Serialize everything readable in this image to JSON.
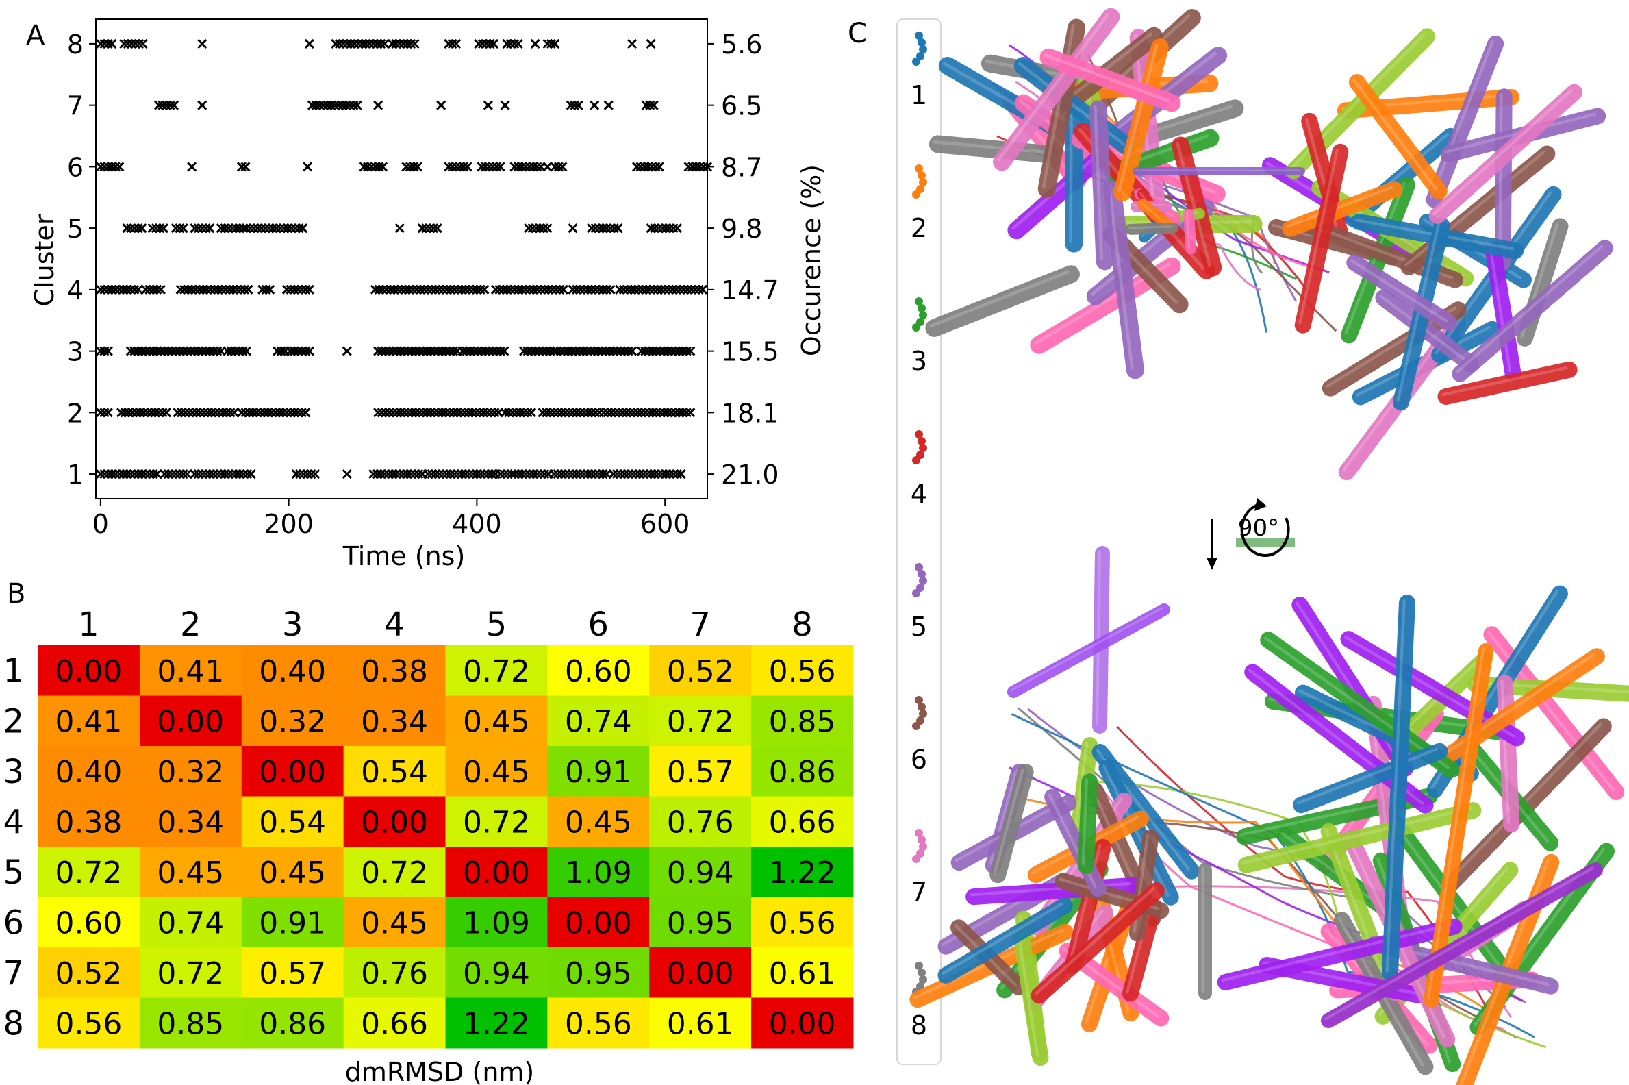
{
  "panels": {
    "a_label": "A",
    "b_label": "B",
    "c_label": "C"
  },
  "chart_data": [
    {
      "panel": "A",
      "type": "scatter",
      "marker": "x",
      "xlabel": "Time (ns)",
      "ylabel": "Cluster",
      "ylabel_right": "Occurence (%)",
      "xlim": [
        -5,
        645
      ],
      "ylim": [
        0.6,
        8.4
      ],
      "xticks": [
        "0",
        "200",
        "400",
        "600"
      ],
      "xtick_values": [
        0,
        200,
        400,
        600
      ],
      "yticks": [
        "1",
        "2",
        "3",
        "4",
        "5",
        "6",
        "7",
        "8"
      ],
      "right_ticks": [
        "21.0",
        "18.1",
        "15.5",
        "14.7",
        "9.8",
        "8.7",
        "6.5",
        "5.6"
      ],
      "series": [
        {
          "cluster": 1,
          "occurrence": 21.0,
          "time_ranges": [
            [
              0,
              62
            ],
            [
              68,
              95
            ],
            [
              100,
              160
            ],
            [
              208,
              228
            ],
            [
              262,
              262
            ],
            [
              290,
              345
            ],
            [
              348,
              420
            ],
            [
              425,
              440
            ],
            [
              440,
              478
            ],
            [
              482,
              540
            ],
            [
              545,
              620
            ]
          ]
        },
        {
          "cluster": 2,
          "occurrence": 18.1,
          "time_ranges": [
            [
              0,
              8
            ],
            [
              22,
              70
            ],
            [
              82,
              142
            ],
            [
              150,
              218
            ],
            [
              295,
              425
            ],
            [
              430,
              460
            ],
            [
              470,
              530
            ],
            [
              535,
              628
            ]
          ]
        },
        {
          "cluster": 3,
          "occurrence": 15.5,
          "time_ranges": [
            [
              0,
              8
            ],
            [
              32,
              72
            ],
            [
              60,
              128
            ],
            [
              135,
              158
            ],
            [
              188,
              198
            ],
            [
              202,
              225
            ],
            [
              262,
              262
            ],
            [
              295,
              380
            ],
            [
              385,
              432
            ],
            [
              450,
              482
            ],
            [
              485,
              565
            ],
            [
              575,
              628
            ]
          ]
        },
        {
          "cluster": 4,
          "occurrence": 14.7,
          "time_ranges": [
            [
              0,
              40
            ],
            [
              48,
              65
            ],
            [
              85,
              160
            ],
            [
              172,
              180
            ],
            [
              198,
              225
            ],
            [
              292,
              410
            ],
            [
              420,
              495
            ],
            [
              502,
              545
            ],
            [
              552,
              640
            ]
          ]
        },
        {
          "cluster": 5,
          "occurrence": 9.8,
          "time_ranges": [
            [
              28,
              45
            ],
            [
              55,
              70
            ],
            [
              80,
              90
            ],
            [
              100,
              118
            ],
            [
              128,
              155
            ],
            [
              155,
              218
            ],
            [
              318,
              318
            ],
            [
              342,
              360
            ],
            [
              455,
              475
            ],
            [
              502,
              502
            ],
            [
              522,
              552
            ],
            [
              585,
              615
            ]
          ]
        },
        {
          "cluster": 6,
          "occurrence": 8.7,
          "time_ranges": [
            [
              0,
              22
            ],
            [
              97,
              97
            ],
            [
              150,
              155
            ],
            [
              220,
              220
            ],
            [
              280,
              300
            ],
            [
              325,
              340
            ],
            [
              370,
              390
            ],
            [
              405,
              425
            ],
            [
              440,
              470
            ],
            [
              475,
              478
            ],
            [
              483,
              493
            ],
            [
              570,
              595
            ],
            [
              625,
              645
            ]
          ]
        },
        {
          "cluster": 7,
          "occurrence": 6.5,
          "time_ranges": [
            [
              62,
              78
            ],
            [
              108,
              108
            ],
            [
              225,
              275
            ],
            [
              295,
              295
            ],
            [
              362,
              362
            ],
            [
              412,
              412
            ],
            [
              430,
              430
            ],
            [
              500,
              510
            ],
            [
              525,
              525
            ],
            [
              540,
              540
            ],
            [
              580,
              590
            ]
          ]
        },
        {
          "cluster": 8,
          "occurrence": 5.6,
          "time_ranges": [
            [
              0,
              15
            ],
            [
              25,
              45
            ],
            [
              108,
              108
            ],
            [
              222,
              222
            ],
            [
              250,
              305
            ],
            [
              310,
              335
            ],
            [
              370,
              380
            ],
            [
              402,
              418
            ],
            [
              432,
              445
            ],
            [
              462,
              462
            ],
            [
              475,
              485
            ],
            [
              565,
              565
            ],
            [
              585,
              585
            ]
          ]
        }
      ]
    },
    {
      "panel": "B",
      "type": "heatmap",
      "xlabel": "dmRMSD (nm)",
      "categories": [
        "1",
        "2",
        "3",
        "4",
        "5",
        "6",
        "7",
        "8"
      ],
      "values": [
        [
          "0.00",
          "0.41",
          "0.40",
          "0.38",
          "0.72",
          "0.60",
          "0.52",
          "0.56"
        ],
        [
          "0.41",
          "0.00",
          "0.32",
          "0.34",
          "0.45",
          "0.74",
          "0.72",
          "0.85"
        ],
        [
          "0.40",
          "0.32",
          "0.00",
          "0.54",
          "0.45",
          "0.91",
          "0.57",
          "0.86"
        ],
        [
          "0.38",
          "0.34",
          "0.54",
          "0.00",
          "0.72",
          "0.45",
          "0.76",
          "0.66"
        ],
        [
          "0.72",
          "0.45",
          "0.45",
          "0.72",
          "0.00",
          "1.09",
          "0.94",
          "1.22"
        ],
        [
          "0.60",
          "0.74",
          "0.91",
          "0.45",
          "1.09",
          "0.00",
          "0.95",
          "0.56"
        ],
        [
          "0.52",
          "0.72",
          "0.57",
          "0.76",
          "0.94",
          "0.95",
          "0.00",
          "0.61"
        ],
        [
          "0.56",
          "0.85",
          "0.86",
          "0.66",
          "1.22",
          "0.56",
          "0.61",
          "0.00"
        ]
      ],
      "colormap": [
        "#e80000",
        "#ff8c00",
        "#ffff00",
        "#00c000"
      ]
    },
    {
      "panel": "C",
      "type": "other",
      "legend": [
        {
          "label": "1",
          "color": "#1f77b4"
        },
        {
          "label": "2",
          "color": "#ff7f0e"
        },
        {
          "label": "3",
          "color": "#2ca02c"
        },
        {
          "label": "4",
          "color": "#d62728"
        },
        {
          "label": "5",
          "color": "#9467bd"
        },
        {
          "label": "6",
          "color": "#8c564b"
        },
        {
          "label": "7",
          "color": "#e377c2"
        },
        {
          "label": "8",
          "color": "#7f7f7f"
        }
      ],
      "rotation_label": "90°",
      "extra_colors": [
        "#a020f0",
        "#ff69b4",
        "#9acd32"
      ]
    }
  ]
}
